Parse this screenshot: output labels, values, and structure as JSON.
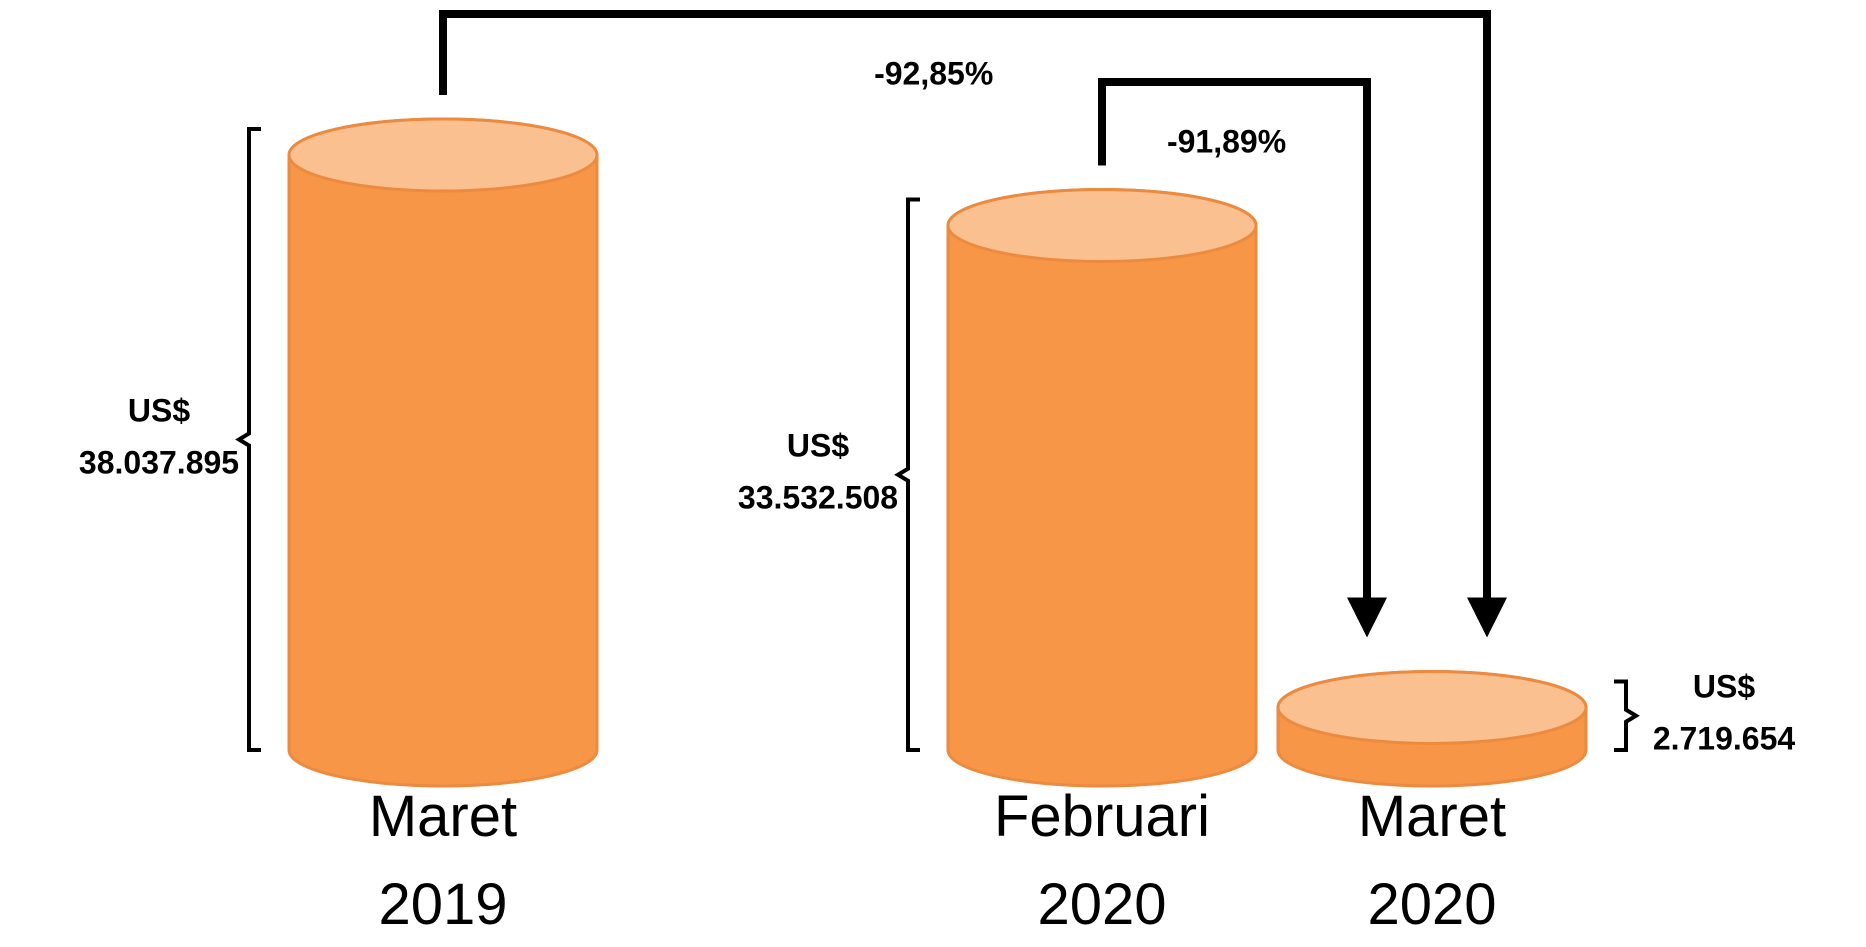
{
  "chart_data": {
    "type": "cylinder",
    "categories": [
      "Maret 2019",
      "Februari 2020",
      "Maret 2020"
    ],
    "values": [
      38037895,
      33532508,
      2719654
    ],
    "value_labels": [
      "US$ 38.037.895",
      "US$ 33.532.508",
      "US$ 2.719.654"
    ],
    "color": "#f79646",
    "top_color": "#fac090",
    "annotations": [
      {
        "text": "-92,85%",
        "from": 0,
        "to": 2
      },
      {
        "text": "-91,89%",
        "from": 1,
        "to": 2
      }
    ]
  }
}
